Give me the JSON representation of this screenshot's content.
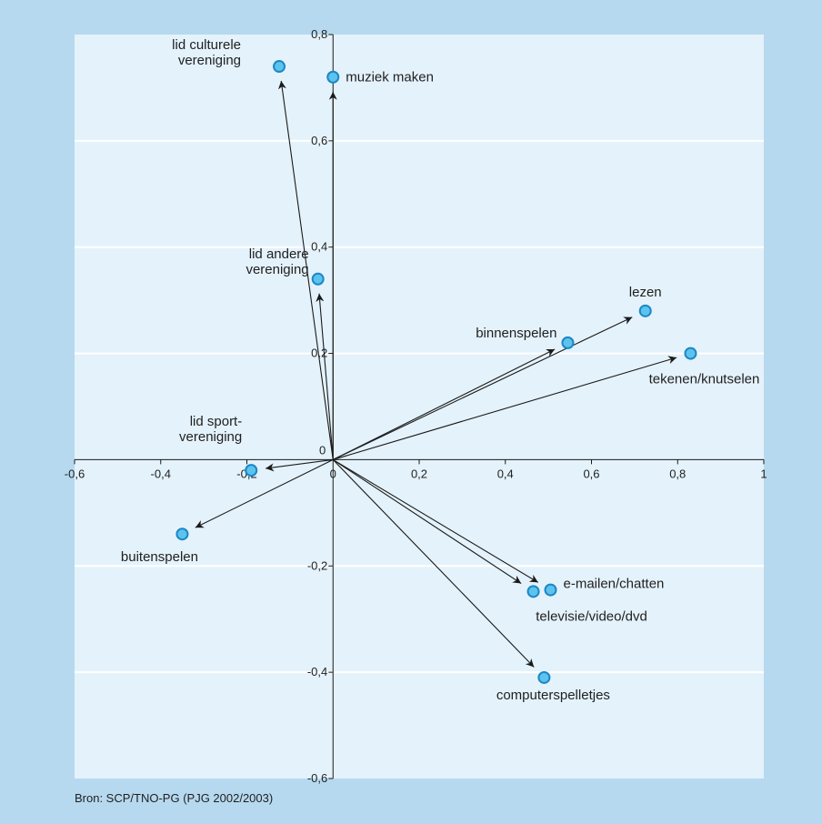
{
  "chart_data": {
    "type": "scatter",
    "xlim": [
      -0.6,
      1
    ],
    "ylim": [
      -0.6,
      0.8
    ],
    "x_ticks": [
      {
        "value": -0.6,
        "label": "-0,6"
      },
      {
        "value": -0.4,
        "label": "-0,4"
      },
      {
        "value": -0.2,
        "label": "-0,2"
      },
      {
        "value": 0,
        "label": "0"
      },
      {
        "value": 0.2,
        "label": "0,2"
      },
      {
        "value": 0.4,
        "label": "0,4"
      },
      {
        "value": 0.6,
        "label": "0,6"
      },
      {
        "value": 0.8,
        "label": "0,8"
      },
      {
        "value": 1,
        "label": "1"
      }
    ],
    "y_ticks": [
      {
        "value": 0.8,
        "label": "0,8"
      },
      {
        "value": 0.6,
        "label": "0,6"
      },
      {
        "value": 0.4,
        "label": "0,4"
      },
      {
        "value": 0.2,
        "label": "0,2"
      },
      {
        "value": -0.2,
        "label": "-0,2"
      },
      {
        "value": -0.4,
        "label": "-0,4"
      },
      {
        "value": -0.6,
        "label": "-0,6"
      }
    ],
    "origin_label": "0",
    "grid": "horizontal",
    "points": [
      {
        "name": "lid-culturele-vereniging",
        "label": [
          "lid culturele",
          "vereniging"
        ],
        "x": -0.125,
        "y": 0.74,
        "label_pos": "left-top"
      },
      {
        "name": "muziek-maken",
        "label": [
          "muziek maken"
        ],
        "x": 0.0,
        "y": 0.72,
        "label_pos": "right"
      },
      {
        "name": "lid-andere-vereniging",
        "label": [
          "lid andere",
          "vereniging"
        ],
        "x": -0.035,
        "y": 0.34,
        "label_pos": "left-top"
      },
      {
        "name": "lezen",
        "label": [
          "lezen"
        ],
        "x": 0.725,
        "y": 0.28,
        "label_pos": "above"
      },
      {
        "name": "binnenspelen",
        "label": [
          "binnenspelen"
        ],
        "x": 0.545,
        "y": 0.22,
        "label_pos": "left-above"
      },
      {
        "name": "tekenen-knutselen",
        "label": [
          "tekenen/knutselen"
        ],
        "x": 0.83,
        "y": 0.2,
        "label_pos": "below-right"
      },
      {
        "name": "lid-sportvereniging",
        "label": [
          "lid sport-",
          "vereniging"
        ],
        "x": -0.19,
        "y": -0.02,
        "label_pos": "left-top"
      },
      {
        "name": "buitenspelen",
        "label": [
          "buitenspelen"
        ],
        "x": -0.35,
        "y": -0.14,
        "label_pos": "below-left"
      },
      {
        "name": "e-mailen-chatten",
        "label": [
          "e-mailen/chatten"
        ],
        "x": 0.505,
        "y": -0.245,
        "label_pos": "right-above"
      },
      {
        "name": "televisie-video-dvd",
        "label": [
          "televisie/video/dvd"
        ],
        "x": 0.465,
        "y": -0.248,
        "label_pos": "below"
      },
      {
        "name": "computerspelletjes",
        "label": [
          "computerspelletjes"
        ],
        "x": 0.49,
        "y": -0.41,
        "label_pos": "below"
      }
    ]
  },
  "source_text": "Bron: SCP/TNO-PG (PJG 2002/2003)",
  "colors": {
    "frame": "#b6d9ef",
    "plot_bg": "#e4f2fb",
    "grid": "#ffffff",
    "marker_fill": "#5cc3ee",
    "marker_stroke": "#1c87c4",
    "axis": "#1a1a1a",
    "text": "#1f1f1f"
  }
}
